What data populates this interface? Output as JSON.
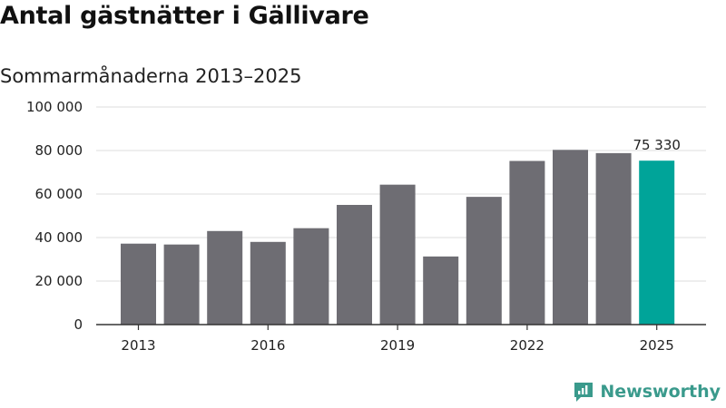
{
  "chart_data": {
    "type": "bar",
    "title": "Antal gästnätter i Gällivare",
    "subtitle": "Sommarmånaderna 2013–2025",
    "categories": [
      "2013",
      "2014",
      "2015",
      "2016",
      "2017",
      "2018",
      "2019",
      "2020",
      "2021",
      "2022",
      "2023",
      "2024",
      "2025"
    ],
    "values": [
      37200,
      36800,
      43000,
      38000,
      44300,
      55000,
      64300,
      31300,
      58700,
      75200,
      80300,
      78800,
      75330
    ],
    "x_tick_labels": [
      "2013",
      "2016",
      "2019",
      "2022",
      "2025"
    ],
    "y_ticks": [
      "0",
      "20 000",
      "40 000",
      "60 000",
      "80 000",
      "100 000"
    ],
    "ylim": [
      0,
      100000
    ],
    "grid": true,
    "highlight_category": "2025",
    "highlight_label": "75 330",
    "colors": {
      "bar": "#6e6d73",
      "highlight": "#00a499",
      "grid": "#dddddd",
      "axis": "#333333"
    }
  },
  "branding": {
    "name": "Newsworthy",
    "icon": "newsworthy-logo-icon",
    "color": "#3a9a8c"
  }
}
